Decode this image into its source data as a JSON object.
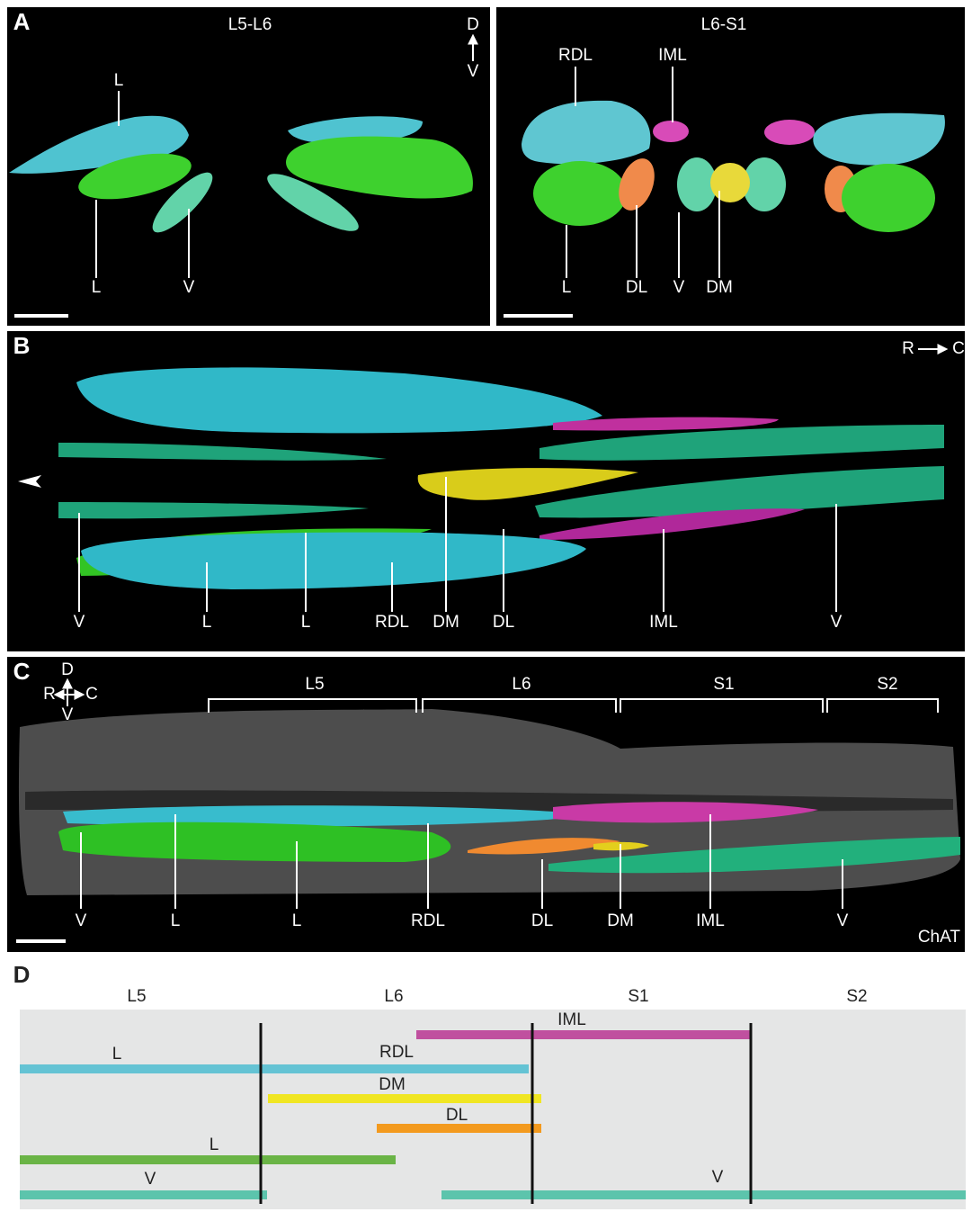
{
  "panels": {
    "A": {
      "label": "A",
      "left": {
        "title": "L5-L6",
        "orientation": [
          "D",
          "V"
        ],
        "labels": [
          "L",
          "L",
          "V"
        ]
      },
      "right": {
        "title": "L6-S1",
        "labels": [
          "RDL",
          "IML",
          "L",
          "DL",
          "V",
          "DM"
        ]
      }
    },
    "B": {
      "label": "B",
      "orientation": [
        "R",
        "C"
      ],
      "labels": [
        "V",
        "L",
        "L",
        "RDL",
        "DM",
        "DL",
        "IML",
        "V"
      ]
    },
    "C": {
      "label": "C",
      "orientation": [
        "D",
        "R",
        "C",
        "V"
      ],
      "segments": [
        "L5",
        "L6",
        "S1",
        "S2"
      ],
      "labels": [
        "V",
        "L",
        "L",
        "RDL",
        "DL",
        "DM",
        "IML",
        "V"
      ],
      "stain": "ChAT"
    },
    "D": {
      "label": "D",
      "segments": [
        "L5",
        "L6",
        "S1",
        "S2"
      ],
      "bars": [
        "IML",
        "L",
        "RDL",
        "DM",
        "DL",
        "L",
        "V",
        "V"
      ]
    }
  }
}
